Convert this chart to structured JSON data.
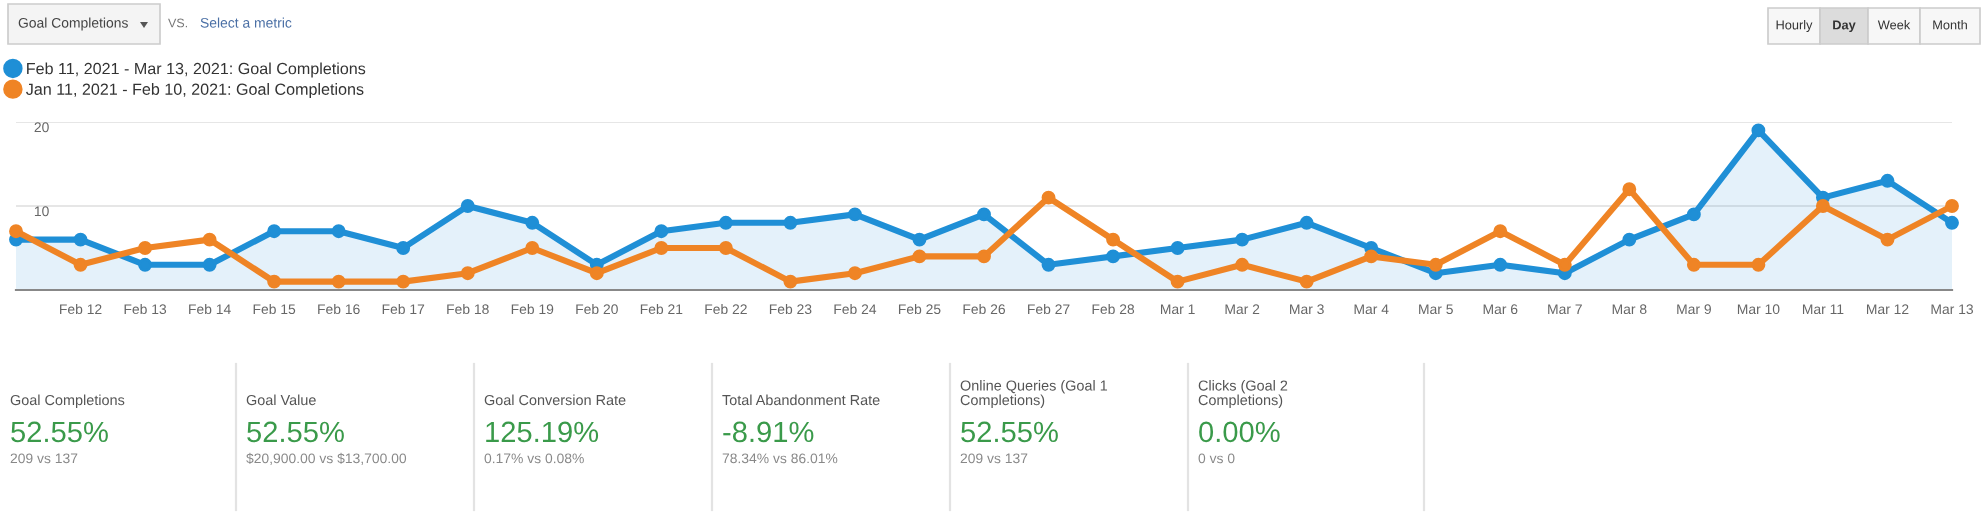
{
  "chart_data": [
    {
      "type": "line",
      "categories": [
        null,
        "Feb 12",
        "Feb 13",
        "Feb 14",
        "Feb 15",
        "Feb 16",
        "Feb 17",
        "Feb 18",
        "Feb 19",
        "Feb 20",
        "Feb 21",
        "Feb 22",
        "Feb 23",
        "Feb 24",
        "Feb 25",
        "Feb 26",
        "Feb 27",
        "Feb 28",
        "Mar 1",
        "Mar 2",
        "Mar 3",
        "Mar 4",
        "Mar 5",
        "Mar 6",
        "Mar 7",
        "Mar 8",
        "Mar 9",
        "Mar 10",
        "Mar 11",
        "Mar 12",
        "Mar 13"
      ],
      "series": [
        {
          "name": "Feb 11, 2021 - Mar 13, 2021: Goal Completions",
          "type": "area",
          "color": "#1f8fd6",
          "values": [
            6,
            6,
            3,
            3,
            7,
            7,
            5,
            10,
            8,
            3,
            7,
            8,
            8,
            9,
            6,
            9,
            3,
            4,
            5,
            6,
            8,
            5,
            2,
            3,
            2,
            6,
            9,
            19,
            11,
            13,
            8
          ]
        },
        {
          "name": "Jan 11, 2021 - Feb 10, 2021: Goal Completions",
          "type": "line",
          "color": "#ef8425",
          "values": [
            7,
            3,
            5,
            6,
            1,
            1,
            1,
            2,
            5,
            2,
            5,
            5,
            1,
            2,
            4,
            4,
            11,
            6,
            1,
            3,
            1,
            4,
            3,
            7,
            3,
            12,
            3,
            3,
            10,
            6,
            10
          ]
        }
      ],
      "ylim": [
        0,
        20
      ],
      "yticks": [
        10,
        20
      ],
      "grid": "y",
      "legend": "top left",
      "marker": "circle",
      "annotations": [
        "Goal Completions",
        "VS.",
        "Select a metric",
        "Hourly",
        "Day",
        "Week",
        "Month"
      ]
    },
    {
      "type": "other",
      "annotations": [
        "Goal Completions",
        "52.55%",
        "209 vs 137",
        "Goal Value",
        "52.55%",
        "$20,900.00 vs $13,700.00",
        "Goal Conversion Rate",
        "125.19%",
        "0.17% vs 0.08%",
        "Total Abandonment Rate",
        "-8.91%",
        "78.34% vs 86.01%",
        "Online Queries (Goal 1\nCompletions)",
        "52.55%",
        "209 vs 137",
        "Clicks (Goal 2\nCompletions)",
        "0.00%",
        "0 vs 0"
      ]
    }
  ]
}
